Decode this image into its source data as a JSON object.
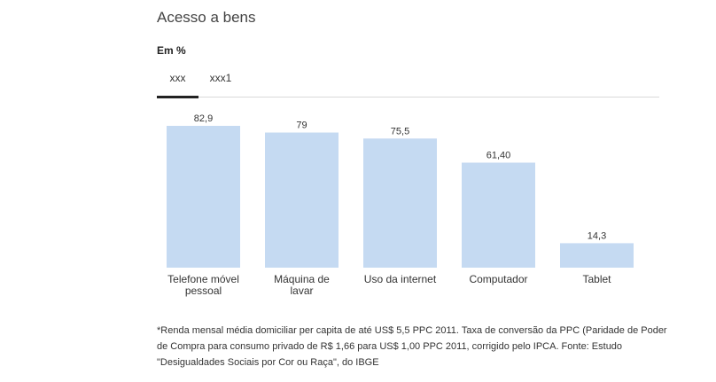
{
  "title": "Acesso a bens",
  "unit_label": "Em %",
  "tabs": [
    {
      "label": "xxx",
      "active": true
    },
    {
      "label": "xxx1",
      "active": false
    }
  ],
  "colors": {
    "bar": "#c5daf2",
    "text": "#333333",
    "tab_active": "#222222"
  },
  "chart_data": {
    "type": "bar",
    "categories": [
      [
        "Telefone móvel",
        "pessoal"
      ],
      [
        "Máquina de",
        "lavar"
      ],
      [
        "Uso da internet"
      ],
      [
        "Computador"
      ],
      [
        "Tablet"
      ]
    ],
    "values": [
      82.9,
      79,
      75.5,
      61.4,
      14.3
    ],
    "value_labels": [
      "82,9",
      "79",
      "75,5",
      "61,40",
      "14,3"
    ],
    "ylim": [
      0,
      100
    ],
    "grid": false,
    "legend": "none"
  },
  "footnote": "*Renda mensal média domiciliar per capita de até US$ 5,5 PPC 2011. Taxa de conversão da PPC (Paridade de Poder de Compra para consumo privado de R$ 1,66 para US$ 1,00 PPC 2011, corrigido pelo IPCA. Fonte: Estudo \"Desigualdades Sociais por Cor ou Raça\", do IBGE"
}
